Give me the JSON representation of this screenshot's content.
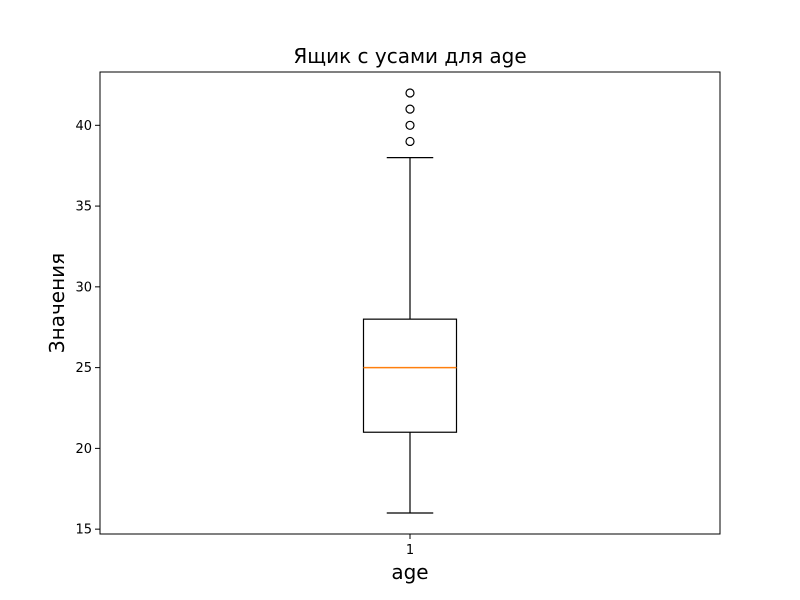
{
  "chart_data": {
    "type": "box",
    "title": "Ящик с усами для age",
    "xlabel": "age",
    "ylabel": "Значения",
    "categories": [
      "1"
    ],
    "ylim": [
      14.7,
      43.3
    ],
    "yticks": [
      15,
      20,
      25,
      30,
      35,
      40
    ],
    "grid": false,
    "boxes": [
      {
        "category": "1",
        "whisker_low": 16,
        "q1": 21,
        "median": 25,
        "q3": 28,
        "whisker_high": 38,
        "outliers": [
          39,
          40,
          41,
          42
        ]
      }
    ],
    "colors": {
      "box": "#000000",
      "median": "#ff7f0e",
      "outlier_edge": "#000000"
    }
  }
}
